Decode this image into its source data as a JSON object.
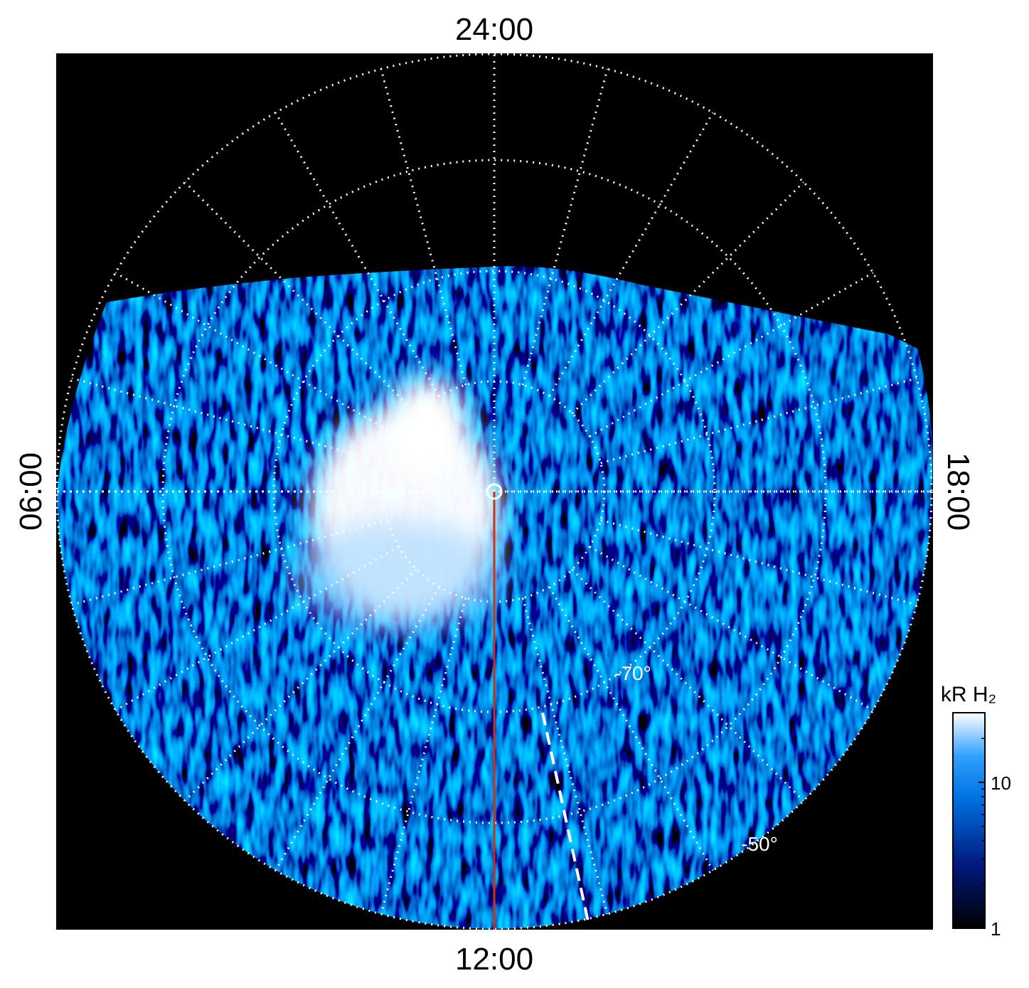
{
  "map": {
    "local_time_labels": {
      "top": "24:00",
      "left": "06:00",
      "bottom": "12:00",
      "right": "18:00"
    },
    "latitude_labels": [
      "-70°",
      "-50°"
    ],
    "colorbar": {
      "label": "kR H₂",
      "log": true,
      "range": [
        1,
        30
      ],
      "ticks": [
        1,
        10
      ]
    }
  }
}
